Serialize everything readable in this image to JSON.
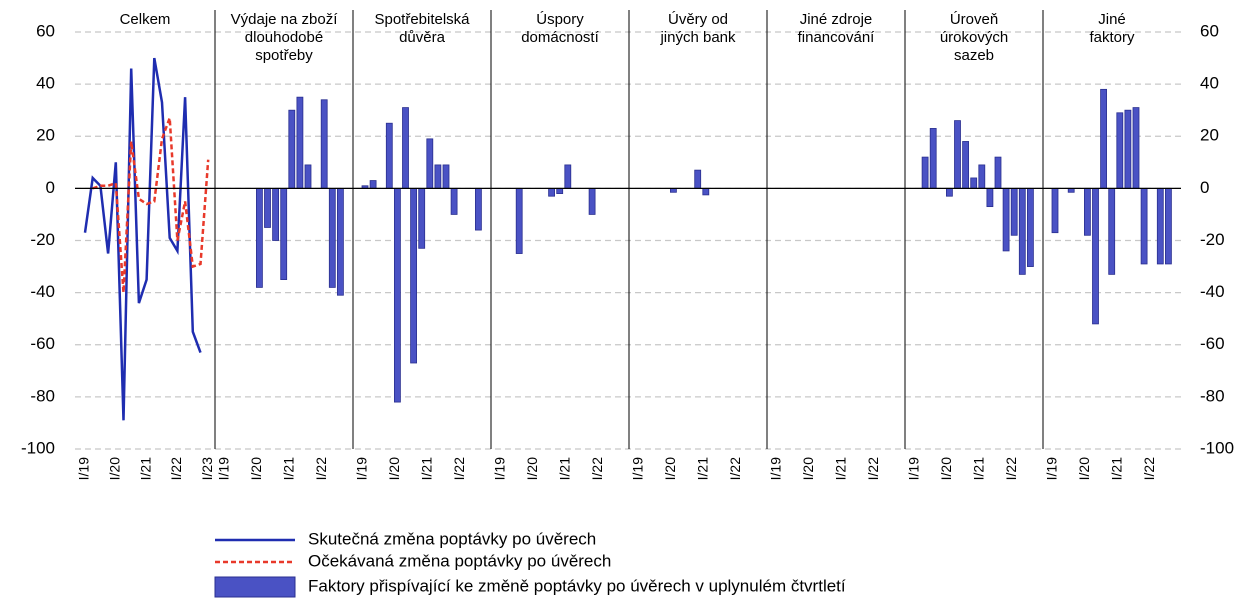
{
  "chart_data": {
    "type": "panels",
    "ylim": [
      -100,
      60
    ],
    "yticks": [
      -100,
      -80,
      -60,
      -40,
      -20,
      0,
      20,
      40,
      60
    ],
    "grid": true,
    "categories": [
      "I/19",
      null,
      null,
      null,
      "I/20",
      null,
      null,
      null,
      "I/21",
      null,
      null,
      null,
      "I/22",
      null,
      null,
      null
    ],
    "bar_name": "Faktory přispívající ke změně poptávky po úvěrech v uplynulém čtvrtletí",
    "bar_color": "#4a52c4",
    "panels": [
      {
        "type": "line",
        "title": [
          "Celkem"
        ],
        "categories": [
          "I/19",
          null,
          null,
          null,
          "I/20",
          null,
          null,
          null,
          "I/21",
          null,
          null,
          null,
          "I/22",
          null,
          null,
          null,
          "I/23"
        ],
        "series": [
          {
            "name": "Skutečná změna poptávky po úvěrech",
            "color": "#1f2db0",
            "dashed": false,
            "values": [
              -17,
              4,
              1,
              -25,
              10,
              -89,
              46,
              -44,
              -35,
              50,
              33,
              -19,
              -24,
              35,
              -55,
              -63,
              null
            ]
          },
          {
            "name": "Očekávaná změna poptávky po úvěrech",
            "color": "#e8392a",
            "dashed": true,
            "values": [
              null,
              0,
              1,
              1,
              2,
              -40,
              18,
              -4,
              -6,
              -5,
              19,
              27,
              -20,
              -5,
              -30,
              -29,
              11
            ]
          }
        ]
      },
      {
        "type": "bar",
        "title": [
          "Výdaje na zboží",
          "dlouhodobé",
          "spotřeby"
        ],
        "values": [
          0,
          0,
          0,
          0,
          -38,
          -15,
          -20,
          -35,
          30,
          35,
          9,
          0,
          34,
          -38,
          -41,
          0
        ]
      },
      {
        "type": "bar",
        "title": [
          "Spotřebitelská",
          "důvěra"
        ],
        "values": [
          1,
          3,
          0,
          25,
          -82,
          31,
          -67,
          -23,
          19,
          9,
          9,
          -10,
          0,
          0,
          -16,
          0
        ]
      },
      {
        "type": "bar",
        "title": [
          "Úspory",
          "domácností"
        ],
        "values": [
          0,
          0,
          -25,
          0,
          0,
          0,
          -3,
          -2,
          9,
          0,
          0,
          -10,
          0,
          0,
          0,
          0
        ]
      },
      {
        "type": "bar",
        "title": [
          "Úvěry od",
          "jiných bank"
        ],
        "values": [
          0,
          0,
          0,
          0,
          -1.5,
          0,
          0,
          7,
          -2.5,
          0,
          0,
          0,
          0,
          0,
          0,
          0
        ]
      },
      {
        "type": "bar",
        "title": [
          "Jiné zdroje",
          "financování"
        ],
        "values": [
          0,
          0,
          0,
          0,
          0,
          0,
          0,
          0,
          0,
          0,
          0,
          0,
          0,
          0,
          0,
          0
        ]
      },
      {
        "type": "bar",
        "title": [
          "Úroveň",
          "úrokových",
          "sazeb"
        ],
        "values": [
          0,
          12,
          23,
          0,
          -3,
          26,
          18,
          4,
          9,
          -7,
          12,
          -24,
          -18,
          -33,
          -30,
          0
        ]
      },
      {
        "type": "bar",
        "title": [
          "Jiné",
          "faktory"
        ],
        "values": [
          -17,
          0,
          -1.5,
          0,
          -18,
          -52,
          38,
          -33,
          29,
          30,
          31,
          -29,
          0,
          -29,
          -29,
          0
        ]
      }
    ]
  }
}
